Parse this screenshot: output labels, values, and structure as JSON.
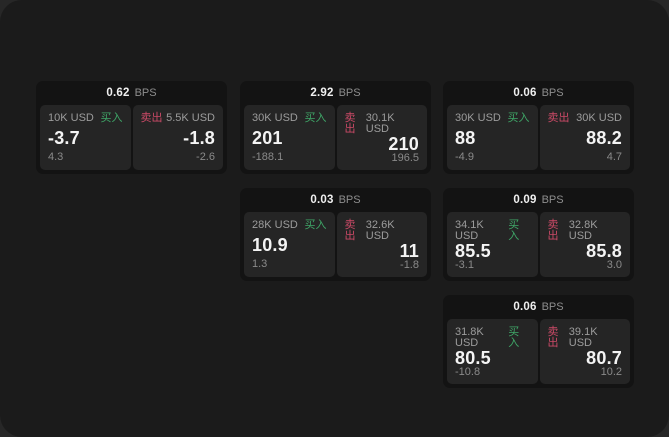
{
  "colors": {
    "buy_green": "#3fa768",
    "sell_red": "#cb4a67",
    "card_bg": "#131313",
    "panel_bg": "#252525",
    "window_bg": "#1b1b1b"
  },
  "cards": [
    {
      "bps": "0.62",
      "unit": "BPS",
      "buy": {
        "amount": "10K USD",
        "label": "买入",
        "value": "-3.7",
        "sub": "4.3"
      },
      "sell": {
        "label": "卖出",
        "amount": "5.5K USD",
        "value": "-1.8",
        "sub": "-2.6"
      }
    },
    {
      "bps": "2.92",
      "unit": "BPS",
      "buy": {
        "amount": "30K USD",
        "label": "买入",
        "value": "201",
        "sub": "-188.1"
      },
      "sell": {
        "label": "卖出",
        "amount": "30.1K USD",
        "value": "210",
        "sub": "196.5"
      }
    },
    {
      "bps": "0.06",
      "unit": "BPS",
      "buy": {
        "amount": "30K USD",
        "label": "买入",
        "value": "88",
        "sub": "-4.9"
      },
      "sell": {
        "label": "卖出",
        "amount": "30K USD",
        "value": "88.2",
        "sub": "4.7"
      }
    },
    {
      "bps": "0.03",
      "unit": "BPS",
      "buy": {
        "amount": "28K USD",
        "label": "买入",
        "value": "10.9",
        "sub": "1.3"
      },
      "sell": {
        "label": "卖出",
        "amount": "32.6K USD",
        "value": "11",
        "sub": "-1.8"
      }
    },
    {
      "bps": "0.09",
      "unit": "BPS",
      "buy": {
        "amount": "34.1K USD",
        "label": "买入",
        "value": "85.5",
        "sub": "-3.1"
      },
      "sell": {
        "label": "卖出",
        "amount": "32.8K USD",
        "value": "85.8",
        "sub": "3.0"
      }
    },
    {
      "bps": "0.06",
      "unit": "BPS",
      "buy": {
        "amount": "31.8K USD",
        "label": "买入",
        "value": "80.5",
        "sub": "-10.8"
      },
      "sell": {
        "label": "卖出",
        "amount": "39.1K USD",
        "value": "80.7",
        "sub": "10.2"
      }
    }
  ]
}
